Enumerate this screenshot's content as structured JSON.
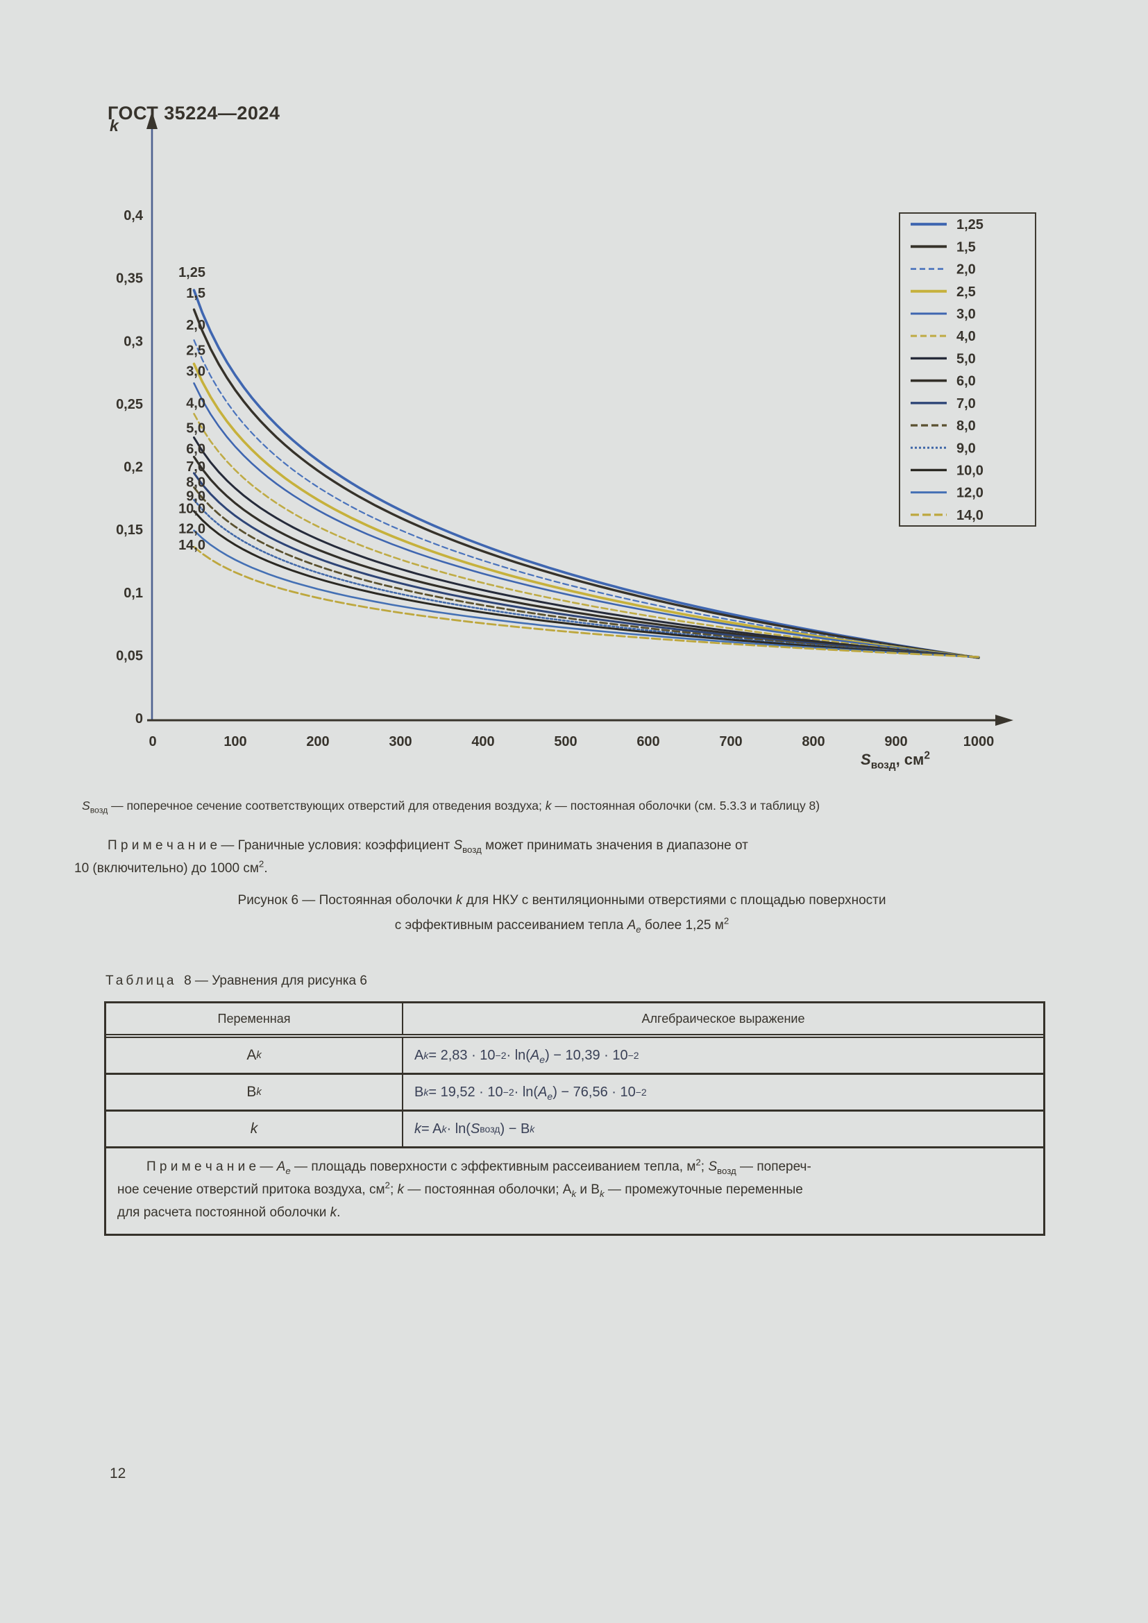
{
  "page": {
    "header": "ГОСТ 35224—2024",
    "page_number": "12",
    "background": "#dfe1e0"
  },
  "chart_data": {
    "type": "line",
    "title": "",
    "xlabel_html": "<i>S</i><sub>возд</sub>, см<sup>2</sup>",
    "ylabel": "k",
    "x_ticks": [
      0,
      100,
      200,
      300,
      400,
      500,
      600,
      700,
      800,
      900,
      1000
    ],
    "y_tick_labels": [
      "0",
      "0,05",
      "0,1",
      "0,15",
      "0,2",
      "0,25",
      "0,3",
      "0,35",
      "0,4"
    ],
    "y_tick_values": [
      0,
      0.05,
      0.1,
      0.15,
      0.2,
      0.25,
      0.3,
      0.35,
      0.4
    ],
    "xlim": [
      0,
      1000
    ],
    "ylim": [
      0,
      0.4
    ],
    "grid": false,
    "legend_position": "top-right",
    "model": {
      "description": "k = Ak·ln(Sвозд) − Bk, Ak = 2,83·10⁻²·ln(Ae) − 10,39·10⁻², Bk = 19,52·10⁻²·ln(Ae) − 76,56·10⁻² (Table 8)",
      "ak_slope": 0.0283,
      "ak_intercept": -0.1039,
      "bk_slope": 0.1952,
      "bk_intercept": -0.7656,
      "s_start": 50,
      "s_end": 1000
    },
    "series": [
      {
        "label": "1,25",
        "ae": 1.25,
        "color": "#3f66b0",
        "width": 3.6,
        "dash": ""
      },
      {
        "label": "1,5",
        "ae": 1.5,
        "color": "#36322a",
        "width": 3.4,
        "dash": ""
      },
      {
        "label": "2,0",
        "ae": 2.0,
        "color": "#4a73bc",
        "width": 2.2,
        "dash": "8 5"
      },
      {
        "label": "2,5",
        "ae": 2.5,
        "color": "#c6b13c",
        "width": 3.6,
        "dash": ""
      },
      {
        "label": "3,0",
        "ae": 3.0,
        "color": "#3f66b0",
        "width": 2.6,
        "dash": ""
      },
      {
        "label": "4,0",
        "ae": 4.0,
        "color": "#bfab45",
        "width": 2.6,
        "dash": "9 5"
      },
      {
        "label": "5,0",
        "ae": 5.0,
        "color": "#262b3a",
        "width": 3.0,
        "dash": ""
      },
      {
        "label": "6,0",
        "ae": 6.0,
        "color": "#322f28",
        "width": 3.2,
        "dash": ""
      },
      {
        "label": "7,0",
        "ae": 7.0,
        "color": "#2e4577",
        "width": 3.0,
        "dash": ""
      },
      {
        "label": "8,0",
        "ae": 8.0,
        "color": "#5a5130",
        "width": 2.8,
        "dash": "10 5"
      },
      {
        "label": "9,0",
        "ae": 9.0,
        "color": "#4168a8",
        "width": 2.6,
        "dash": "3 3"
      },
      {
        "label": "10,0",
        "ae": 10.0,
        "color": "#2b2923",
        "width": 3.0,
        "dash": ""
      },
      {
        "label": "12,0",
        "ae": 12.0,
        "color": "#4470b4",
        "width": 2.6,
        "dash": ""
      },
      {
        "label": "14,0",
        "ae": 14.0,
        "color": "#bda73e",
        "width": 2.8,
        "dash": "12 5"
      }
    ],
    "style": {
      "y_axis_color": "#4d6190",
      "x_axis_color": "#39352d",
      "tick_label_color": "#37332c",
      "legend_border_color": "#3e3a31"
    }
  },
  "caption_html": "<i>S</i><sub>возд</sub> — поперечное сечение соответствующих отверстий для отведения воздуха; <i>k</i> — постоянная оболочки (см. 5.3.3 и таблицу 8)",
  "note1": {
    "line1_html": "П р и м е ч а н и е  — Граничные условия: коэффициент <i>S</i><sub>возд</sub> может принимать значения в диапазоне от",
    "line2_html": "10 (включительно) до 1000 см<sup>2</sup>."
  },
  "figure_caption": {
    "line1_html": "Рисунок 6 — Постоянная оболочки <i>k</i> для НКУ с вентиляционными отверстиями с площадью поверхности",
    "line2_html": "с эффективным рассеиванием тепла <i>A<sub>e</sub></i> более 1,25 м<sup>2</sup>"
  },
  "table": {
    "title": {
      "word": "Таблица",
      "number": "8",
      "rest": "— Уравнения для рисунка 6"
    },
    "headers": [
      "Переменная",
      "Алгебраическое выражение"
    ],
    "rows": [
      {
        "var_html": "A<sub><i>k</i></sub>",
        "expr_html": "A<sub><i>k</i></sub> = 2,83 · 10<sup>−2</sup> · ln(<i>A<sub>e</sub></i>) − 10,39 · 10<sup>−2</sup>"
      },
      {
        "var_html": "B<sub><i>k</i></sub>",
        "expr_html": "B<sub><i>k</i></sub> = 19,52 · 10<sup>−2</sup> · ln(<i>A<sub>e</sub></i>) − 76,56 · 10<sup>−2</sup>"
      },
      {
        "var_html": "<i>k</i>",
        "expr_html": "<i>k</i> = A<sub><i>k</i></sub> · ln(<i>S</i><sub>возд</sub>) − B<sub><i>k</i></sub>"
      }
    ],
    "note_html": "П р и м е ч а н и е  — <i>A<sub>e</sub></i> — площадь поверхности с эффективным рассеиванием тепла, м<sup>2</sup>; <i>S</i><sub>возд</sub> — попереч-<br>ное сечение отверстий притока воздуха, см<sup>2</sup>; <i>k</i> — постоянная оболочки; A<sub><i>k</i></sub> и B<sub><i>k</i></sub> — промежуточные переменные<br>для расчета постоянной оболочки <i>k</i>."
  }
}
